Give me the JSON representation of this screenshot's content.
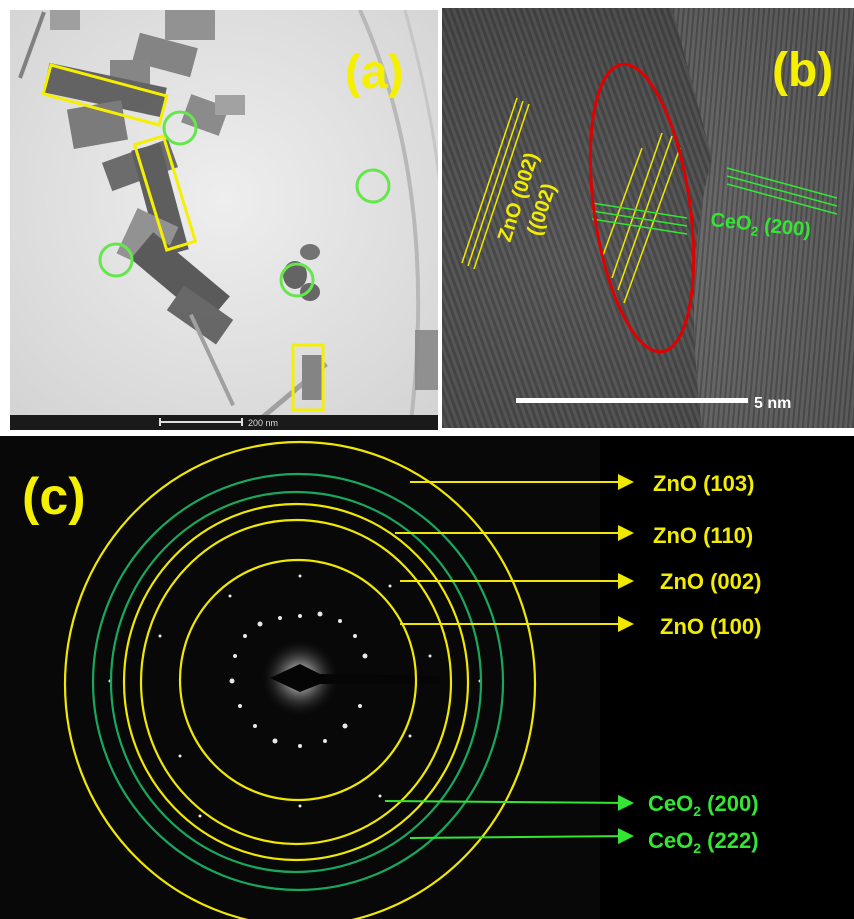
{
  "panel_a": {
    "label": "(a)",
    "scale_bar_label": "200 nm",
    "box_color": "#f5f000",
    "circle_color": "#66e64d"
  },
  "panel_b": {
    "label": "(b)",
    "zno_label": "ZnO (002)",
    "zno_sub_label": "((002)",
    "ceo2_label_main": "CeO",
    "ceo2_label_sub": "2",
    "ceo2_label_plane": " (200)",
    "scale_bar_label": "5 nm",
    "ellipse_color": "#e00000"
  },
  "panel_c": {
    "label": "(c)",
    "zno_rings": [
      {
        "name": "ZnO (103)"
      },
      {
        "name": "ZnO (110)"
      },
      {
        "name": "ZnO (002)"
      },
      {
        "name": "ZnO (100)"
      }
    ],
    "ceo2_rings": [
      {
        "base": "CeO",
        "sub": "2",
        "plane": " (200)"
      },
      {
        "base": "CeO",
        "sub": "2",
        "plane": " (222)"
      }
    ],
    "ring_colors": {
      "zno": "#f0e800",
      "ceo2": "#17a85e"
    },
    "arrow_colors": {
      "zno": "#f0e800",
      "ceo2": "#33e633"
    }
  }
}
